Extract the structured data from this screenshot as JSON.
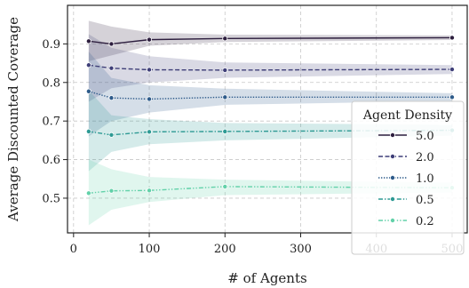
{
  "chart_data": {
    "type": "line",
    "xlabel": "# of Agents",
    "ylabel": "Average Discounted Coverage",
    "xlim": [
      -8,
      520
    ],
    "ylim": [
      0.41,
      1.0
    ],
    "xticks": [
      0,
      100,
      200,
      300,
      400,
      500
    ],
    "yticks": [
      0.5,
      0.6,
      0.7,
      0.8,
      0.9
    ],
    "xtick_labels": [
      "0",
      "100",
      "200",
      "300",
      "400",
      "500"
    ],
    "ytick_labels": [
      "0.5",
      "0.6",
      "0.7",
      "0.8",
      "0.9"
    ],
    "grid": true,
    "legend": {
      "title": "Agent Density",
      "position": "right"
    },
    "x": [
      20,
      50,
      100,
      200,
      500
    ],
    "series": [
      {
        "name": "5.0",
        "color": "#2d1e3e",
        "dash": "solid",
        "values": [
          0.907,
          0.9,
          0.911,
          0.914,
          0.916
        ],
        "lower": [
          0.855,
          0.87,
          0.895,
          0.905,
          0.91
        ],
        "upper": [
          0.96,
          0.945,
          0.93,
          0.924,
          0.922
        ]
      },
      {
        "name": "2.0",
        "color": "#3f3f78",
        "dash": "dashed",
        "values": [
          0.845,
          0.837,
          0.833,
          0.832,
          0.834
        ],
        "lower": [
          0.75,
          0.785,
          0.8,
          0.812,
          0.822
        ],
        "upper": [
          0.925,
          0.89,
          0.868,
          0.852,
          0.845
        ]
      },
      {
        "name": "1.0",
        "color": "#2e5b8a",
        "dash": "dotted",
        "values": [
          0.777,
          0.76,
          0.757,
          0.762,
          0.762
        ],
        "lower": [
          0.66,
          0.7,
          0.722,
          0.742,
          0.752
        ],
        "upper": [
          0.88,
          0.812,
          0.793,
          0.784,
          0.772
        ]
      },
      {
        "name": "0.5",
        "color": "#2e9a94",
        "dash": "dashdot",
        "values": [
          0.673,
          0.664,
          0.672,
          0.673,
          0.676
        ],
        "lower": [
          0.57,
          0.62,
          0.64,
          0.65,
          0.662
        ],
        "upper": [
          0.78,
          0.715,
          0.705,
          0.695,
          0.69
        ]
      },
      {
        "name": "0.2",
        "color": "#62d1a9",
        "dash": "dashdotdot",
        "values": [
          0.513,
          0.519,
          0.52,
          0.53,
          0.527
        ],
        "lower": [
          0.43,
          0.47,
          0.49,
          0.508,
          0.515
        ],
        "upper": [
          0.6,
          0.575,
          0.555,
          0.548,
          0.54
        ]
      }
    ]
  }
}
